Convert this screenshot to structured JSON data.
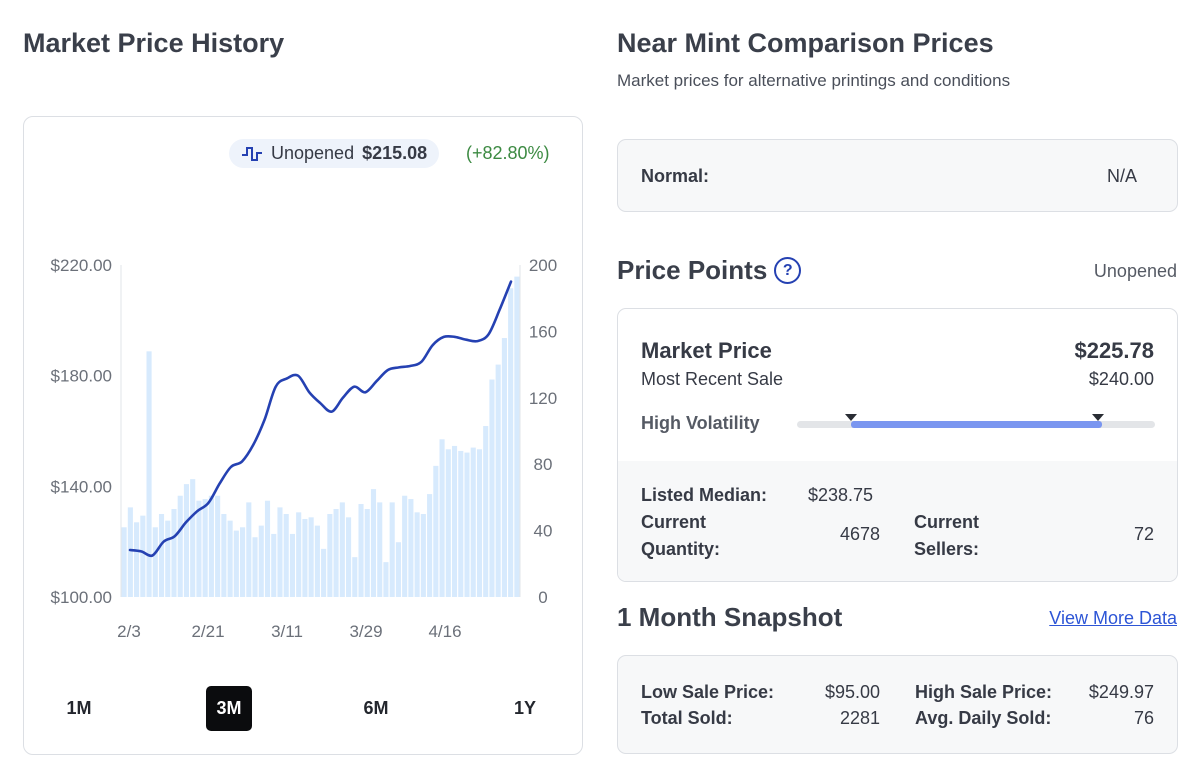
{
  "colors": {
    "accent": "#2541b2",
    "bar": "#d7eafd",
    "positive": "#3c8a42",
    "volatility_fill": "#7a96f0",
    "link": "#2d55d6"
  },
  "market_history": {
    "title": "Market Price History",
    "legend": {
      "icon": "step-line-icon",
      "series_name": "Unopened",
      "price": "$215.08",
      "change": "(+82.80%)"
    },
    "ranges": [
      "1M",
      "3M",
      "6M",
      "1Y"
    ],
    "active_range": "3M"
  },
  "chart_data": {
    "type": "line",
    "x_tick_labels": [
      "2/3",
      "2/21",
      "3/11",
      "3/29",
      "4/16"
    ],
    "left_axis": {
      "ticks": [
        "$220.00",
        "$180.00",
        "$140.00",
        "$100.00"
      ],
      "range": [
        100,
        220
      ]
    },
    "right_axis": {
      "ticks": [
        "200",
        "160",
        "120",
        "80",
        "40",
        "0"
      ],
      "range": [
        0,
        200
      ]
    },
    "series": [
      {
        "kind": "bar",
        "axis": "right",
        "values": [
          42,
          54,
          45,
          49,
          148,
          42,
          50,
          46,
          53,
          61,
          68,
          71,
          58,
          59,
          61,
          61,
          50,
          46,
          40,
          42,
          57,
          36,
          43,
          58,
          38,
          54,
          50,
          38,
          51,
          47,
          48,
          43,
          29,
          50,
          53,
          57,
          48,
          24,
          56,
          53,
          65,
          57,
          21,
          57,
          33,
          61,
          59,
          51,
          50,
          62,
          79,
          95,
          89,
          91,
          88,
          87,
          90,
          89,
          103,
          131,
          140,
          156,
          186,
          193
        ]
      },
      {
        "kind": "line",
        "axis": "left",
        "values": [
          117,
          116.5,
          115,
          120,
          122,
          127,
          131,
          134,
          141,
          147,
          149,
          155,
          164,
          176,
          179,
          180,
          174,
          170,
          167,
          172,
          176,
          174,
          178,
          182,
          183,
          183.5,
          185,
          191,
          194,
          194,
          193,
          192.5,
          195,
          204,
          214
        ]
      }
    ]
  },
  "comparison": {
    "title": "Near Mint Comparison Prices",
    "subtitle": "Market prices for alternative printings and conditions",
    "normal": {
      "label": "Normal:",
      "value": "N/A"
    }
  },
  "price_points": {
    "title": "Price Points",
    "help_glyph": "?",
    "variant": "Unopened",
    "market_price": {
      "label": "Market Price",
      "value": "$225.78"
    },
    "most_recent_sale": {
      "label": "Most Recent Sale",
      "value": "$240.00"
    },
    "volatility": {
      "label": "High Volatility",
      "low_marker": 0.15,
      "high_marker": 0.84
    },
    "listed_median": {
      "label": "Listed Median:",
      "value": "$238.75"
    },
    "current_quantity": {
      "label_line1": "Current",
      "label_line2": "Quantity:",
      "value": "4678"
    },
    "current_sellers": {
      "label_line1": "Current",
      "label_line2": "Sellers:",
      "value": "72"
    }
  },
  "snapshot": {
    "title": "1 Month Snapshot",
    "link": "View More Data",
    "low_sale": {
      "label": "Low Sale Price:",
      "value": "$95.00"
    },
    "total_sold": {
      "label": "Total Sold:",
      "value": "2281"
    },
    "high_sale": {
      "label": "High Sale Price:",
      "value": "$249.97"
    },
    "avg_daily": {
      "label": "Avg. Daily Sold:",
      "value": "76"
    }
  }
}
